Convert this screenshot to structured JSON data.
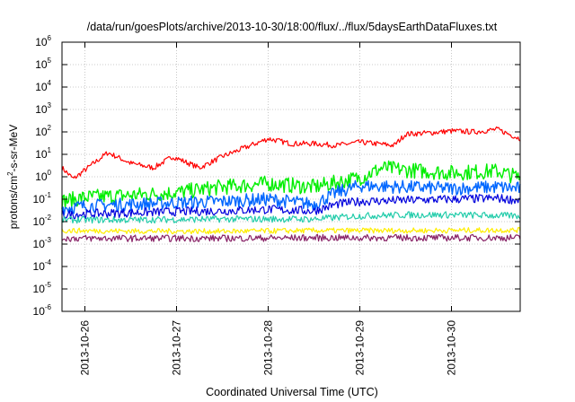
{
  "chart_data": {
    "type": "line",
    "title": "/data/run/goesPlots/archive/2013-10-30/18:00/flux/../flux/5daysEarthDataFluxes.txt",
    "xlabel": "Coordinated Universal Time (UTC)",
    "ylabel": {
      "base": "protons/cm",
      "exp": "2",
      "rest": "-s-sr-MeV"
    },
    "yscale": "log",
    "ylim": [
      1e-06,
      1000000.0
    ],
    "yticks": [
      {
        "base": "10",
        "exp": "-6"
      },
      {
        "base": "10",
        "exp": "-5"
      },
      {
        "base": "10",
        "exp": "-4"
      },
      {
        "base": "10",
        "exp": "-3"
      },
      {
        "base": "10",
        "exp": "-2"
      },
      {
        "base": "10",
        "exp": "-1"
      },
      {
        "base": "10",
        "exp": "0"
      },
      {
        "base": "10",
        "exp": "1"
      },
      {
        "base": "10",
        "exp": "2"
      },
      {
        "base": "10",
        "exp": "3"
      },
      {
        "base": "10",
        "exp": "4"
      },
      {
        "base": "10",
        "exp": "5"
      },
      {
        "base": "10",
        "exp": "6"
      }
    ],
    "xlim": [
      "2013-10-25T18:00",
      "2013-10-30T18:00"
    ],
    "xticks": [
      "2013-10-26",
      "2013-10-27",
      "2013-10-28",
      "2013-10-29",
      "2013-10-30"
    ],
    "grid": true,
    "series": [
      {
        "color": "#ff0000",
        "x": [
          "2013-10-25T18:00",
          "2013-10-25T21:00",
          "2013-10-26T00:00",
          "2013-10-26T06:00",
          "2013-10-26T12:00",
          "2013-10-26T18:00",
          "2013-10-26T23:00",
          "2013-10-27T06:00",
          "2013-10-27T12:00",
          "2013-10-27T18:00",
          "2013-10-28T00:00",
          "2013-10-28T06:00",
          "2013-10-28T12:00",
          "2013-10-28T18:00",
          "2013-10-29T00:00",
          "2013-10-29T09:00",
          "2013-10-29T12:00",
          "2013-10-29T18:00",
          "2013-10-30T00:00",
          "2013-10-30T06:00",
          "2013-10-30T12:00",
          "2013-10-30T18:00"
        ],
        "y": [
          2.5,
          0.8,
          2,
          12,
          4,
          2.5,
          8,
          2.5,
          8,
          20,
          50,
          30,
          30,
          25,
          35,
          25,
          80,
          90,
          110,
          100,
          130,
          50
        ]
      },
      {
        "color": "#00ee00",
        "x": [
          "2013-10-25T18:00",
          "2013-10-26T00:00",
          "2013-10-26T12:00",
          "2013-10-27T00:00",
          "2013-10-27T12:00",
          "2013-10-28T00:00",
          "2013-10-28T12:00",
          "2013-10-29T00:00",
          "2013-10-29T06:00",
          "2013-10-29T12:00",
          "2013-10-30T00:00",
          "2013-10-30T12:00",
          "2013-10-30T18:00"
        ],
        "y": [
          0.08,
          0.12,
          0.15,
          0.2,
          0.35,
          0.5,
          0.35,
          0.9,
          2.5,
          2,
          1.5,
          1.8,
          0.9
        ]
      },
      {
        "color": "#0066ff",
        "x": [
          "2013-10-25T18:00",
          "2013-10-26T00:00",
          "2013-10-26T12:00",
          "2013-10-27T00:00",
          "2013-10-27T12:00",
          "2013-10-28T00:00",
          "2013-10-28T12:00",
          "2013-10-28T18:00",
          "2013-10-29T00:00",
          "2013-10-29T12:00",
          "2013-10-30T00:00",
          "2013-10-30T12:00",
          "2013-10-30T18:00"
        ],
        "y": [
          0.04,
          0.05,
          0.06,
          0.07,
          0.08,
          0.1,
          0.06,
          0.2,
          0.4,
          0.35,
          0.3,
          0.35,
          0.3
        ]
      },
      {
        "color": "#0000dd",
        "x": [
          "2013-10-25T18:00",
          "2013-10-26T00:00",
          "2013-10-26T12:00",
          "2013-10-27T00:00",
          "2013-10-27T12:00",
          "2013-10-28T00:00",
          "2013-10-28T12:00",
          "2013-10-28T18:00",
          "2013-10-29T00:00",
          "2013-10-29T12:00",
          "2013-10-30T00:00",
          "2013-10-30T12:00",
          "2013-10-30T18:00"
        ],
        "y": [
          0.02,
          0.022,
          0.025,
          0.028,
          0.03,
          0.035,
          0.03,
          0.06,
          0.08,
          0.09,
          0.1,
          0.11,
          0.09
        ]
      },
      {
        "color": "#22ccaa",
        "x": [
          "2013-10-25T18:00",
          "2013-10-26T12:00",
          "2013-10-27T12:00",
          "2013-10-28T12:00",
          "2013-10-29T00:00",
          "2013-10-29T12:00",
          "2013-10-30T00:00",
          "2013-10-30T18:00"
        ],
        "y": [
          0.012,
          0.012,
          0.013,
          0.013,
          0.018,
          0.02,
          0.02,
          0.018
        ]
      },
      {
        "color": "#ffee00",
        "x": [
          "2013-10-25T18:00",
          "2013-10-26T12:00",
          "2013-10-27T12:00",
          "2013-10-28T12:00",
          "2013-10-29T12:00",
          "2013-10-30T18:00"
        ],
        "y": [
          0.004,
          0.0038,
          0.0037,
          0.004,
          0.004,
          0.0042
        ]
      },
      {
        "color": "#882266",
        "x": [
          "2013-10-25T18:00",
          "2013-10-26T12:00",
          "2013-10-27T12:00",
          "2013-10-28T12:00",
          "2013-10-29T12:00",
          "2013-10-30T18:00"
        ],
        "y": [
          0.0018,
          0.0018,
          0.0018,
          0.0019,
          0.0019,
          0.0019
        ]
      }
    ]
  }
}
